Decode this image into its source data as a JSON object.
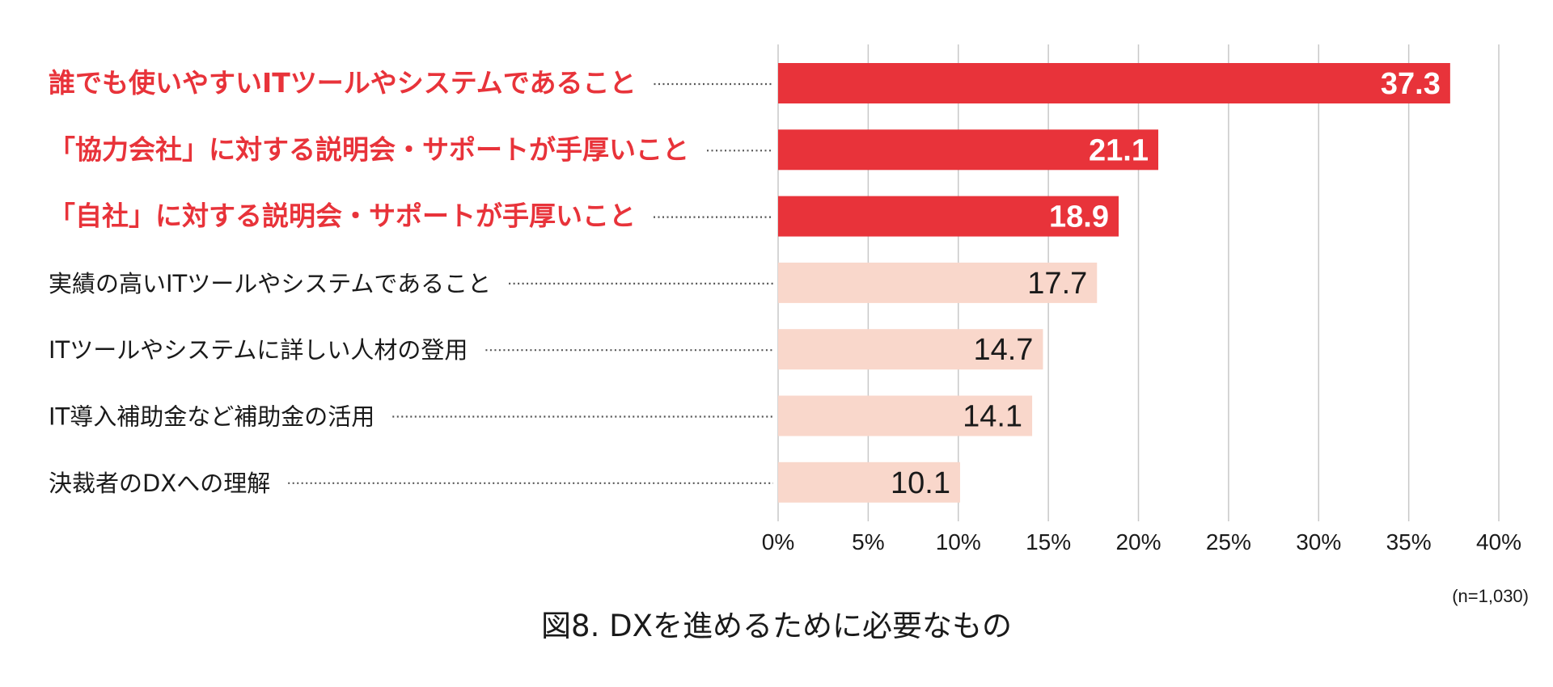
{
  "colors": {
    "highlight_bar": "#e8333a",
    "normal_bar": "#f9d7cb",
    "highlight_text": "#e8333a",
    "normal_text": "#1a1a1a",
    "grid": "#c8c8c8",
    "leader": "#555555"
  },
  "chart_data": {
    "type": "bar",
    "orientation": "horizontal",
    "title": "図8. DXを進めるために必要なもの",
    "sample_note": "(n=1,030)",
    "unit": "%",
    "xlim": [
      0,
      40
    ],
    "tick_step": 5,
    "ticks": [
      "0%",
      "5%",
      "10%",
      "15%",
      "20%",
      "25%",
      "30%",
      "35%",
      "40%"
    ],
    "grid": true,
    "categories": [
      "誰でも使いやすいITツールやシステムであること",
      "「協力会社」に対する説明会・サポートが手厚いこと",
      "「自社」に対する説明会・サポートが手厚いこと",
      "実績の高いITツールやシステムであること",
      "ITツールやシステムに詳しい人材の登用",
      "IT導入補助金など補助金の活用",
      "決裁者のDXへの理解"
    ],
    "values": [
      37.3,
      21.1,
      18.9,
      17.7,
      14.7,
      14.1,
      10.1
    ],
    "value_labels": [
      "37.3",
      "21.1",
      "18.9",
      "17.7",
      "14.7",
      "14.1",
      "10.1"
    ],
    "highlighted": [
      true,
      true,
      true,
      false,
      false,
      false,
      false
    ]
  }
}
